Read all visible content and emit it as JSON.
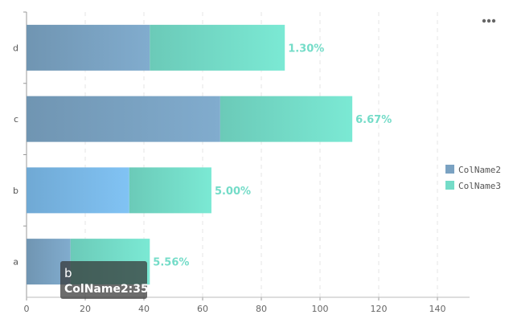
{
  "chart_data": {
    "type": "bar",
    "orientation": "horizontal",
    "stacked": true,
    "categories": [
      "a",
      "b",
      "c",
      "d"
    ],
    "series": [
      {
        "name": "ColName2",
        "values": [
          15,
          35,
          66,
          42
        ],
        "color": "#7aa2c2"
      },
      {
        "name": "ColName3",
        "values": [
          27,
          28,
          45,
          46
        ],
        "color": "#74dcc8"
      }
    ],
    "data_labels": [
      "5.56%",
      "5.00%",
      "6.67%",
      "1.30%"
    ],
    "data_label_color": "#74dcc8",
    "xlim": [
      0,
      160
    ],
    "xticks": [
      0,
      20,
      40,
      60,
      80,
      100,
      120,
      140
    ],
    "grid": "vertical-dashed",
    "legend_position": "right",
    "highlight": {
      "category": "b",
      "color": "#7ab8e6"
    },
    "tooltip": {
      "title": "b",
      "series": "ColName2",
      "value": "35",
      "text": "ColName2:35"
    },
    "menu_icon": "more-horizontal-icon"
  }
}
